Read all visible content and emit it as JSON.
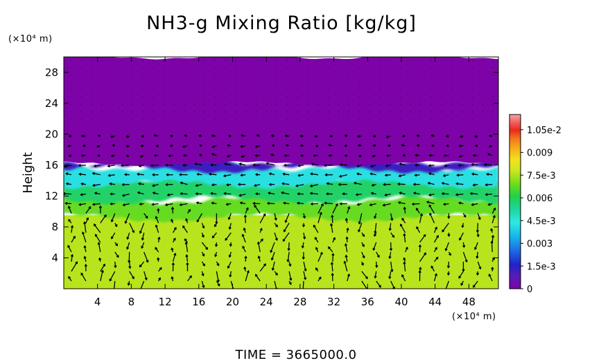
{
  "chart_data": {
    "type": "heatmap",
    "title": "NH3-g Mixing Ratio [kg/kg]",
    "xlabel": "",
    "ylabel": "Height",
    "x_unit": "(×10⁴ m)",
    "y_unit": "(×10⁴ m)",
    "x_ticks": [
      4,
      8,
      12,
      16,
      20,
      24,
      28,
      32,
      36,
      40,
      44,
      48
    ],
    "y_ticks": [
      4,
      8,
      12,
      16,
      20,
      24,
      28
    ],
    "xlim": [
      0,
      51.5
    ],
    "ylim": [
      0,
      30
    ],
    "colorbar": {
      "labels": [
        "1.05e-2",
        "0.009",
        "7.5e-3",
        "0.006",
        "4.5e-3",
        "0.003",
        "1.5e-3",
        "0"
      ],
      "label_values": [
        0.0105,
        0.009,
        0.0075,
        0.006,
        0.0045,
        0.003,
        0.0015,
        0
      ],
      "range": [
        0,
        0.0115
      ]
    },
    "layers": [
      {
        "name": "upper",
        "y_from": 16.2,
        "y_to": 30,
        "value": 0.0
      },
      {
        "name": "interface",
        "y_from": 15.5,
        "y_to": 16.5,
        "value": 0.0012
      },
      {
        "name": "cyan-band",
        "y_from": 13.5,
        "y_to": 15.8,
        "value": 0.0042
      },
      {
        "name": "green-band",
        "y_from": 11.5,
        "y_to": 14.5,
        "value": 0.0058
      },
      {
        "name": "lime-band",
        "y_from": 9.2,
        "y_to": 11.5,
        "value": 0.0068
      },
      {
        "name": "lower",
        "y_from": 0,
        "y_to": 9.5,
        "value": 0.0076
      }
    ]
  },
  "footer": {
    "time_label": "TIME  =  3665000.0"
  }
}
